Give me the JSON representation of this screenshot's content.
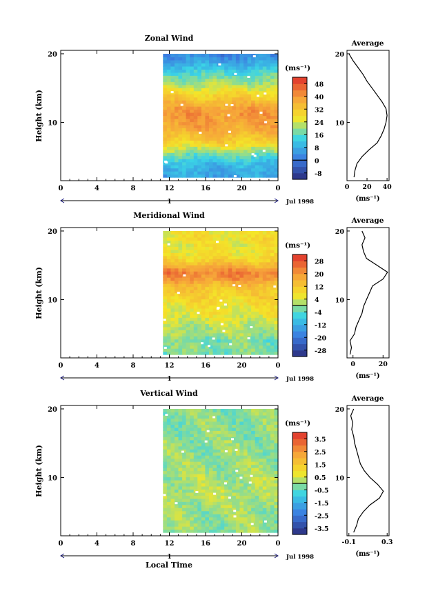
{
  "figure": {
    "xlabel": "Local Time",
    "date_label": "Jul 1998",
    "day_label": "1",
    "colors": {
      "cold_end": "#2b2d7c",
      "mid_blue": "#3b7be0",
      "cyan": "#3ad4e6",
      "yellow": "#f4e628",
      "orange": "#f6a23a",
      "hot_end": "#e0302c"
    }
  },
  "chart_data": [
    {
      "name": "zonal",
      "type": "heatmap",
      "title": "Zonal Wind",
      "ylabel": "Height (km)",
      "xticks": [
        "0",
        "4",
        "8",
        "12",
        "16",
        "20",
        "0"
      ],
      "xlim": [
        0,
        24
      ],
      "data_x_start": 11.3,
      "yticks": [
        "20",
        "10"
      ],
      "ylim": [
        1.5,
        20.5
      ],
      "colorbar_unit": "(ms⁻¹)",
      "colorbar_ticks": [
        "48",
        "40",
        "32",
        "24",
        "16",
        "8",
        "0",
        "-8"
      ],
      "colorbar_range": [
        -12,
        52
      ],
      "profile_by_height": [
        {
          "h": 2,
          "v": 7
        },
        {
          "h": 3,
          "v": 8
        },
        {
          "h": 4,
          "v": 10
        },
        {
          "h": 5,
          "v": 15
        },
        {
          "h": 6,
          "v": 22
        },
        {
          "h": 7,
          "v": 30
        },
        {
          "h": 8,
          "v": 34
        },
        {
          "h": 9,
          "v": 37
        },
        {
          "h": 10,
          "v": 39
        },
        {
          "h": 11,
          "v": 40
        },
        {
          "h": 12,
          "v": 39
        },
        {
          "h": 13,
          "v": 35
        },
        {
          "h": 14,
          "v": 30
        },
        {
          "h": 15,
          "v": 25
        },
        {
          "h": 16,
          "v": 20
        },
        {
          "h": 17,
          "v": 16
        },
        {
          "h": 18,
          "v": 11
        },
        {
          "h": 19,
          "v": 6
        },
        {
          "h": 20,
          "v": 2
        }
      ],
      "avg_panel": {
        "title": "Average",
        "xticks": [
          "0",
          "20",
          "40"
        ],
        "xlim": [
          0,
          42
        ],
        "xlabel": "(ms⁻¹)",
        "yticks": [
          "20",
          "10"
        ]
      }
    },
    {
      "name": "meridional",
      "type": "heatmap",
      "title": "Meridional Wind",
      "ylabel": "Height (km)",
      "xticks": [
        "0",
        "4",
        "8",
        "12",
        "16",
        "20",
        "0"
      ],
      "xlim": [
        0,
        24
      ],
      "data_x_start": 11.3,
      "yticks": [
        "20",
        "10"
      ],
      "ylim": [
        1.5,
        20.5
      ],
      "colorbar_unit": "(ms⁻¹)",
      "colorbar_ticks": [
        "28",
        "20",
        "12",
        "4",
        "-4",
        "-12",
        "-20",
        "-28"
      ],
      "colorbar_range": [
        -32,
        32
      ],
      "profile_by_height": [
        {
          "h": 2,
          "v": -2
        },
        {
          "h": 3,
          "v": -1
        },
        {
          "h": 4,
          "v": -2
        },
        {
          "h": 5,
          "v": 1
        },
        {
          "h": 6,
          "v": 2
        },
        {
          "h": 7,
          "v": 4
        },
        {
          "h": 8,
          "v": 6
        },
        {
          "h": 9,
          "v": 7
        },
        {
          "h": 10,
          "v": 9
        },
        {
          "h": 11,
          "v": 11
        },
        {
          "h": 12,
          "v": 13
        },
        {
          "h": 13,
          "v": 20
        },
        {
          "h": 14,
          "v": 23
        },
        {
          "h": 15,
          "v": 16
        },
        {
          "h": 16,
          "v": 9
        },
        {
          "h": 17,
          "v": 7
        },
        {
          "h": 18,
          "v": 6
        },
        {
          "h": 19,
          "v": 8
        },
        {
          "h": 20,
          "v": 6
        }
      ],
      "avg_panel": {
        "title": "Average",
        "xticks": [
          "0",
          "20"
        ],
        "xlim": [
          -4,
          24
        ],
        "xlabel": "(ms⁻¹)",
        "yticks": [
          "20",
          "10"
        ]
      }
    },
    {
      "name": "vertical",
      "type": "heatmap",
      "title": "Vertical Wind",
      "ylabel": "Height (km)",
      "xticks": [
        "0",
        "4",
        "8",
        "12",
        "16",
        "20",
        "0"
      ],
      "xlim": [
        0,
        24
      ],
      "data_x_start": 11.3,
      "yticks": [
        "20",
        "10"
      ],
      "ylim": [
        1.5,
        20.5
      ],
      "colorbar_unit": "(ms⁻¹)",
      "colorbar_ticks": [
        "3.5",
        "2.5",
        "1.5",
        "0.5",
        "-0.5",
        "-1.5",
        "-2.5",
        "-3.5"
      ],
      "colorbar_range": [
        -4,
        4
      ],
      "profile_by_height": [
        {
          "h": 2,
          "v": -0.05
        },
        {
          "h": 3,
          "v": -0.02
        },
        {
          "h": 4,
          "v": 0.0
        },
        {
          "h": 5,
          "v": 0.05
        },
        {
          "h": 6,
          "v": 0.12
        },
        {
          "h": 7,
          "v": 0.22
        },
        {
          "h": 8,
          "v": 0.26
        },
        {
          "h": 9,
          "v": 0.2
        },
        {
          "h": 10,
          "v": 0.12
        },
        {
          "h": 11,
          "v": 0.06
        },
        {
          "h": 12,
          "v": 0.02
        },
        {
          "h": 13,
          "v": 0.0
        },
        {
          "h": 14,
          "v": -0.02
        },
        {
          "h": 15,
          "v": -0.04
        },
        {
          "h": 16,
          "v": -0.05
        },
        {
          "h": 17,
          "v": -0.07
        },
        {
          "h": 18,
          "v": -0.06
        },
        {
          "h": 19,
          "v": -0.08
        },
        {
          "h": 20,
          "v": -0.05
        }
      ],
      "avg_panel": {
        "title": "Average",
        "xticks": [
          "-0.1",
          "0.3"
        ],
        "xlim": [
          -0.12,
          0.32
        ],
        "xlabel": "(ms⁻¹)",
        "yticks": [
          "20",
          "10"
        ]
      }
    }
  ]
}
